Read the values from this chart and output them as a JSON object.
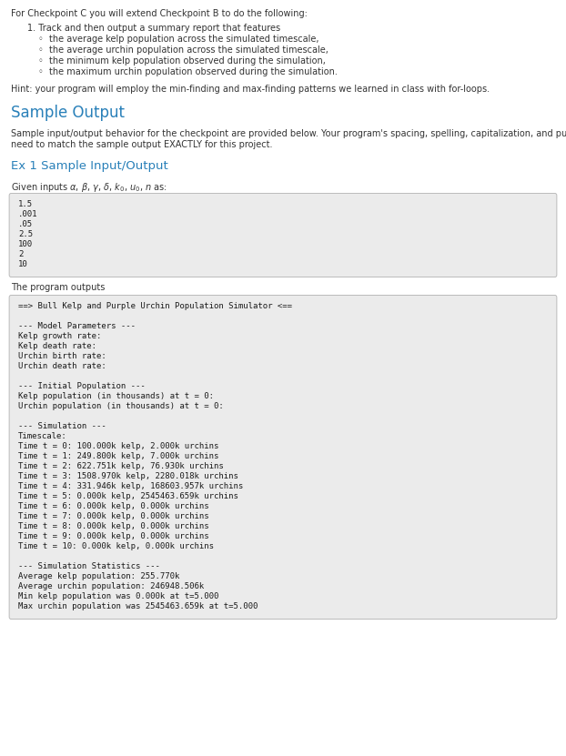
{
  "bg_color": "#ffffff",
  "code_bg": "#ebebeb",
  "header_color": "#2980b9",
  "normal_text_color": "#333333",
  "code_text_color": "#1a1a1a",
  "body_text_size": 7.0,
  "code_text_size": 6.5,
  "header1_size": 12.0,
  "header2_size": 9.5,
  "intro_line": "For Checkpoint C you will extend Checkpoint B to do the following:",
  "list_item": "1. Track and then output a summary report that features",
  "bullet_items": [
    "the average kelp population across the simulated timescale,",
    "the average urchin population across the simulated timescale,",
    "the minimum kelp population observed during the simulation,",
    "the maximum urchin population observed during the simulation."
  ],
  "hint_line": "Hint: your program will employ the min-finding and max-finding patterns we learned in class with for-loops.",
  "sample_output_header": "Sample Output",
  "description_line1": "Sample input/output behavior for the checkpoint are provided below. Your program's spacing, spelling, capitalization, and punctuation will",
  "description_line2": "need to match the sample output EXACTLY for this project.",
  "ex1_header": "Ex 1 Sample Input/Output",
  "program_outputs_line": "The program outputs",
  "input_block": [
    "1.5",
    ".001",
    ".05",
    "2.5",
    "100",
    "2",
    "10"
  ],
  "output_block": [
    "==> Bull Kelp and Purple Urchin Population Simulator <==",
    "",
    "--- Model Parameters ---",
    "Kelp growth rate:",
    "Kelp death rate:",
    "Urchin birth rate:",
    "Urchin death rate:",
    "",
    "--- Initial Population ---",
    "Kelp population (in thousands) at t = 0:",
    "Urchin population (in thousands) at t = 0:",
    "",
    "--- Simulation ---",
    "Timescale:",
    "Time t = 0: 100.000k kelp, 2.000k urchins",
    "Time t = 1: 249.800k kelp, 7.000k urchins",
    "Time t = 2: 622.751k kelp, 76.930k urchins",
    "Time t = 3: 1508.970k kelp, 2280.018k urchins",
    "Time t = 4: 331.946k kelp, 168603.957k urchins",
    "Time t = 5: 0.000k kelp, 2545463.659k urchins",
    "Time t = 6: 0.000k kelp, 0.000k urchins",
    "Time t = 7: 0.000k kelp, 0.000k urchins",
    "Time t = 8: 0.000k kelp, 0.000k urchins",
    "Time t = 9: 0.000k kelp, 0.000k urchins",
    "Time t = 10: 0.000k kelp, 0.000k urchins",
    "",
    "--- Simulation Statistics ---",
    "Average kelp population: 255.770k",
    "Average urchin population: 246948.506k",
    "Min kelp population was 0.000k at t=5.000",
    "Max urchin population was 2545463.659k at t=5.000"
  ]
}
